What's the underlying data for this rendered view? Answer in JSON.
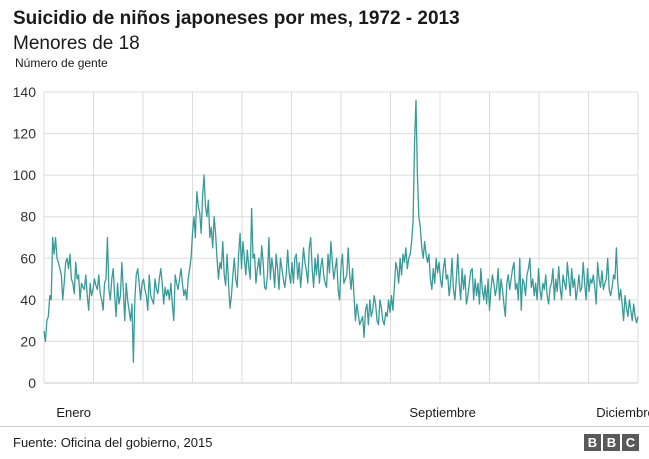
{
  "header": {
    "title": "Suicidio de niños japoneses por mes, 1972 - 2013",
    "subtitle": "Menores de 18",
    "unit": "Número de gente"
  },
  "footer": {
    "source": "Fuente: Oficina del gobierno, 2015",
    "logo": [
      "B",
      "B",
      "C"
    ]
  },
  "colors": {
    "line": "#3a9a98",
    "grid": "#dcdcdc",
    "text": "#1a1a1a"
  },
  "chart_data": {
    "type": "line",
    "title": "Suicidio de niños japoneses por mes, 1972 - 2013",
    "subtitle": "Menores de 18",
    "ylabel": "Número de gente",
    "ylim": [
      0,
      140
    ],
    "yticks": [
      0,
      20,
      40,
      60,
      80,
      100,
      120,
      140
    ],
    "x_labels": [
      {
        "label": "Enero",
        "at": 0.05
      },
      {
        "label": "Septiembre",
        "at": 0.671
      },
      {
        "label": "Diciembre",
        "at": 0.979
      }
    ],
    "grid": true,
    "series": [
      {
        "values": [
          25,
          20,
          30,
          32,
          42,
          40,
          70,
          62,
          70,
          60,
          58,
          55,
          52,
          40,
          48,
          58,
          60,
          55,
          62,
          50,
          48,
          43,
          58,
          50,
          52,
          40,
          48,
          46,
          45,
          52,
          42,
          35,
          48,
          42,
          45,
          50,
          47,
          45,
          52,
          43,
          40,
          35,
          48,
          50,
          70,
          45,
          40,
          50,
          55,
          42,
          32,
          48,
          38,
          42,
          58,
          45,
          30,
          48,
          40,
          35,
          30,
          38,
          10,
          40,
          52,
          55,
          48,
          40,
          48,
          50,
          45,
          42,
          35,
          52,
          42,
          40,
          38,
          50,
          45,
          43,
          50,
          55,
          48,
          38,
          46,
          42,
          45,
          40,
          48,
          38,
          30,
          52,
          48,
          45,
          50,
          55,
          48,
          42,
          45,
          40,
          50,
          55,
          60,
          72,
          80,
          70,
          92,
          85,
          82,
          72,
          90,
          100,
          85,
          80,
          88,
          70,
          75,
          65,
          80,
          72,
          60,
          50,
          58,
          55,
          68,
          52,
          47,
          62,
          48,
          36,
          42,
          52,
          60,
          50,
          46,
          62,
          72,
          55,
          68,
          60,
          52,
          64,
          56,
          50,
          84,
          60,
          62,
          48,
          55,
          60,
          52,
          66,
          58,
          46,
          45,
          52,
          70,
          50,
          60,
          55,
          46,
          62,
          55,
          45,
          60,
          55,
          50,
          46,
          52,
          64,
          53,
          48,
          58,
          48,
          60,
          62,
          50,
          58,
          46,
          55,
          65,
          58,
          54,
          48,
          65,
          70,
          55,
          46,
          60,
          52,
          62,
          48,
          56,
          60,
          52,
          48,
          46,
          62,
          53,
          68,
          58,
          50,
          55,
          60,
          45,
          40,
          56,
          62,
          48,
          50,
          52,
          65,
          52,
          45,
          55,
          42,
          30,
          38,
          33,
          28,
          30,
          32,
          22,
          35,
          38,
          28,
          40,
          32,
          35,
          42,
          38,
          30,
          28,
          40,
          36,
          30,
          28,
          34,
          32,
          40,
          34,
          42,
          35,
          46,
          58,
          55,
          48,
          60,
          52,
          62,
          58,
          65,
          55,
          60,
          62,
          68,
          78,
          115,
          136,
          100,
          80,
          75,
          65,
          60,
          68,
          62,
          58,
          62,
          50,
          45,
          55,
          48,
          60,
          53,
          58,
          50,
          46,
          55,
          60,
          50,
          52,
          42,
          48,
          60,
          45,
          40,
          50,
          62,
          48,
          40,
          55,
          45,
          52,
          38,
          42,
          48,
          54,
          55,
          40,
          50,
          42,
          48,
          38,
          55,
          45,
          40,
          47,
          38,
          50,
          35,
          45,
          52,
          48,
          42,
          46,
          55,
          40,
          50,
          45,
          38,
          32,
          48,
          52,
          45,
          50,
          55,
          58,
          45,
          48,
          40,
          60,
          35,
          50,
          48,
          42,
          52,
          55,
          60,
          46,
          50,
          42,
          48,
          40,
          55,
          45,
          40,
          48,
          45,
          52,
          42,
          38,
          46,
          48,
          55,
          40,
          50,
          44,
          56,
          46,
          40,
          52,
          48,
          45,
          58,
          50,
          42,
          55,
          46,
          50,
          40,
          45,
          52,
          44,
          46,
          58,
          48,
          40,
          55,
          44,
          50,
          48,
          52,
          46,
          38,
          58,
          50,
          46,
          54,
          45,
          48,
          50,
          60,
          45,
          42,
          46,
          52,
          50,
          65,
          48,
          40,
          45,
          38,
          30,
          42,
          36,
          32,
          40,
          35,
          30,
          38,
          32,
          29,
          32
        ]
      }
    ]
  }
}
